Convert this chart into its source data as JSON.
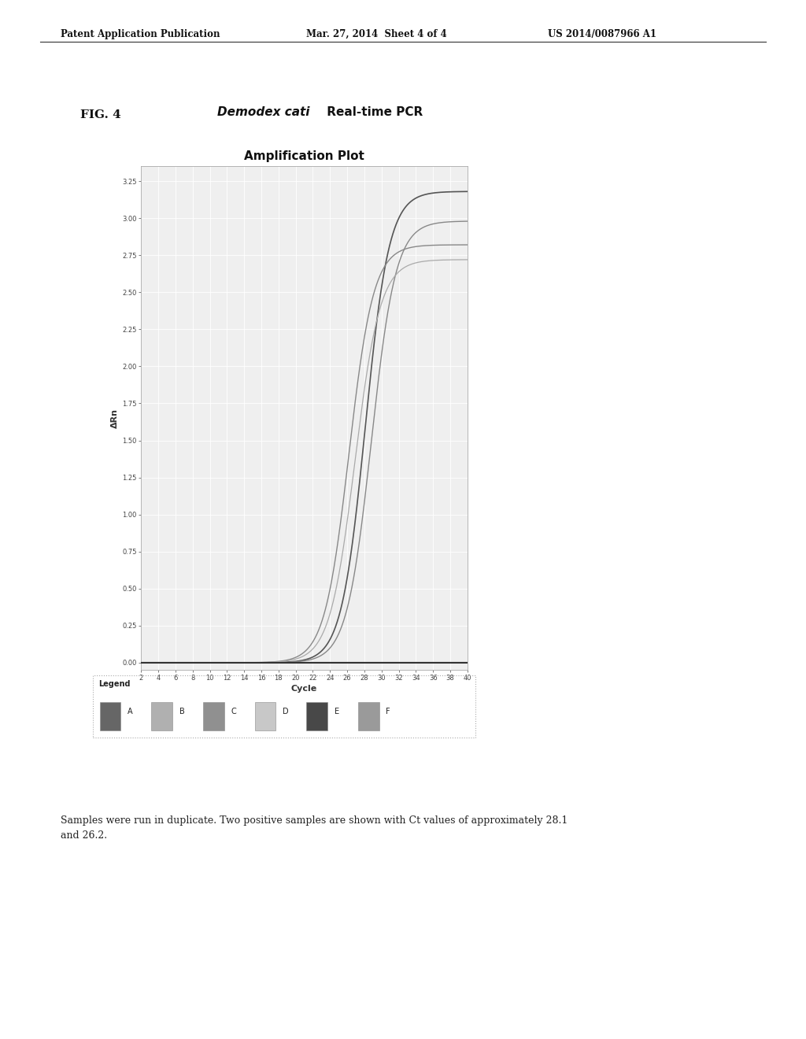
{
  "page_header_left": "Patent Application Publication",
  "page_header_mid": "Mar. 27, 2014  Sheet 4 of 4",
  "page_header_right": "US 2014/0087966 A1",
  "fig_label": "FIG. 4",
  "fig_title_italic": "Demodex cati",
  "fig_title_normal": " Real-time PCR",
  "chart_title": "Amplification Plot",
  "xlabel": "Cycle",
  "ylabel": "ΔRn",
  "xlim": [
    2,
    40
  ],
  "ylim": [
    -0.05,
    3.35
  ],
  "xticks": [
    2,
    4,
    6,
    8,
    10,
    12,
    14,
    16,
    18,
    20,
    22,
    24,
    26,
    28,
    30,
    32,
    34,
    36,
    38,
    40
  ],
  "yticks": [
    0.0,
    0.25,
    0.5,
    0.75,
    1.0,
    1.25,
    1.5,
    1.75,
    2.0,
    2.25,
    2.5,
    2.75,
    3.0,
    3.25
  ],
  "background_color": "#ffffff",
  "plot_bg_color": "#efefef",
  "grid_color": "#ffffff",
  "legend_labels": [
    "A",
    "B",
    "C",
    "D",
    "E",
    "F"
  ],
  "legend_colors": [
    "#666666",
    "#b0b0b0",
    "#909090",
    "#c8c8c8",
    "#484848",
    "#9a9a9a"
  ],
  "bottom_text": "Samples were run in duplicate. Two positive samples are shown with Ct values of approximately 28.1\nand 26.2.",
  "baseline_color": "#333333",
  "curve1a_ct": 28.1,
  "curve1a_amp": 3.18,
  "curve1a_k": 0.72,
  "curve1b_ct": 28.8,
  "curve1b_amp": 2.98,
  "curve1b_k": 0.7,
  "curve2a_ct": 26.2,
  "curve2a_amp": 2.82,
  "curve2a_k": 0.7,
  "curve2b_ct": 26.9,
  "curve2b_amp": 2.72,
  "curve2b_k": 0.68,
  "curve_color_dark": "#555555",
  "curve_color_mid": "#888888",
  "curve_color_light": "#aaaaaa"
}
